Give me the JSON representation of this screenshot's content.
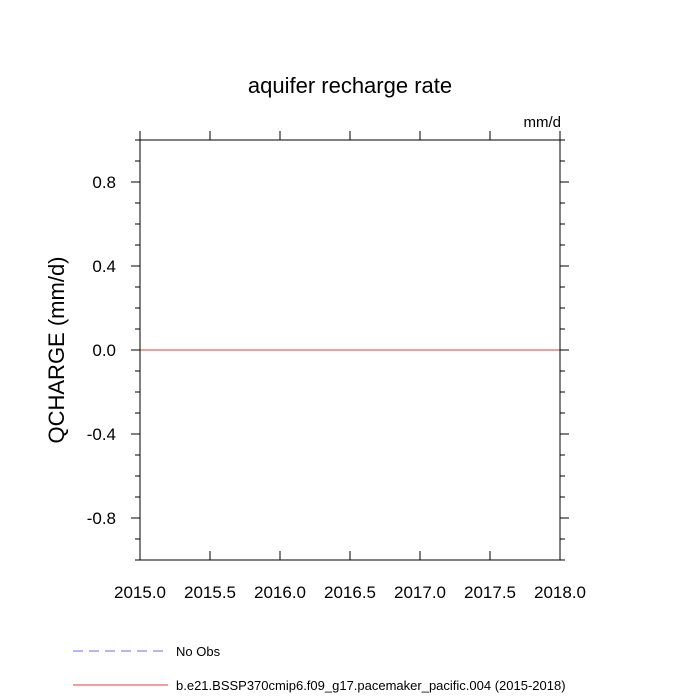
{
  "chart_data": {
    "type": "line",
    "title": "aquifer recharge rate",
    "units": "mm/d",
    "ylabel": "QCHARGE  (mm/d)",
    "xlabel": "",
    "xlim": [
      2015.0,
      2018.0
    ],
    "ylim": [
      -1.0,
      1.0
    ],
    "x_tick_labels": [
      "2015.0",
      "2015.5",
      "2016.0",
      "2016.5",
      "2017.0",
      "2017.5",
      "2018.0"
    ],
    "y_tick_labels": [
      "0.8",
      "0.4",
      "0.0",
      "-0.4",
      "-0.8"
    ],
    "grid": false,
    "series": [
      {
        "name": "No Obs",
        "color": "#6b6bff",
        "dash": "dashed",
        "x": [],
        "y": []
      },
      {
        "name": "b.e21.BSSP370cmip6.f09_g17.pacemaker_pacific.004 (2015-2018)",
        "color": "#e0403a",
        "dash": "solid",
        "x": [
          2015.0,
          2018.0
        ],
        "y": [
          0.0,
          0.0
        ]
      }
    ],
    "legend_position": "bottom-left"
  }
}
